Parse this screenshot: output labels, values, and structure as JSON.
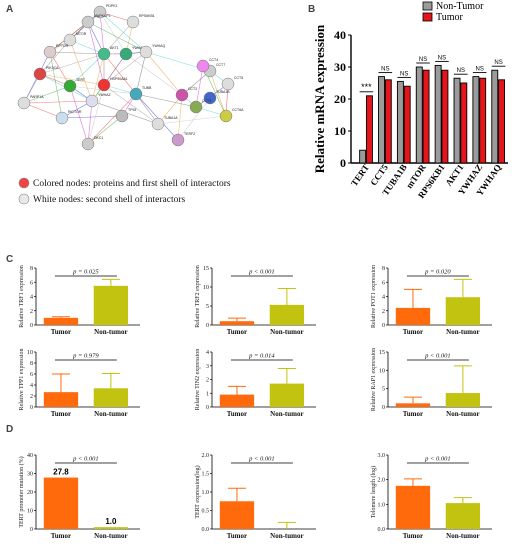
{
  "panels": {
    "a": "A",
    "b": "B",
    "c": "C",
    "d": "D"
  },
  "network": {
    "legend_colored": "Colored nodes: proteins and first shell of interactors",
    "legend_white": "White nodes: second shell of interactors",
    "node_labels": [
      "PDPK1",
      "RPS6KB1",
      "MAPKAP1",
      "MTOR",
      "RPTOR",
      "AKT1",
      "YWHAB",
      "YWHAQ",
      "TERT",
      "PIK3CA",
      "YWHAZ",
      "TUBA1B",
      "CCT7",
      "CCT5",
      "CCT4",
      "CCT6A",
      "TUBA1A",
      "PARP1A",
      "RICTOR",
      "TP53",
      "HSP90AA1",
      "CCT2",
      "CCT3",
      "DKC1",
      "TERF2",
      "TUBB"
    ]
  },
  "chart_data": [
    {
      "id": "B",
      "type": "bar",
      "ylabel": "Relative mRNA expression",
      "ylim": [
        0,
        40
      ],
      "yticks": [
        0,
        10,
        20,
        30,
        40
      ],
      "categories": [
        "TERT",
        "CCT5",
        "TUBA1B",
        "mTOR",
        "RPS6KB1",
        "AKT1",
        "YWHAZ",
        "YWHAQ"
      ],
      "series": [
        {
          "name": "Non-Tumor",
          "color": "#9b9b9b",
          "values": [
            4.0,
            27.0,
            25.5,
            30.0,
            30.5,
            26.5,
            27.0,
            29.0
          ]
        },
        {
          "name": "Tumor",
          "color": "#e4161c",
          "values": [
            21.0,
            26.0,
            24.0,
            29.0,
            29.0,
            25.0,
            26.5,
            26.0
          ]
        }
      ],
      "significance": [
        "***",
        "NS",
        "NS",
        "NS",
        "NS",
        "NS",
        "NS",
        "NS"
      ],
      "legend": "top-right"
    },
    {
      "id": "C1",
      "type": "bar",
      "ylabel": "Relative TRF1 expression",
      "categories": [
        "Tumor",
        "Non-tumor"
      ],
      "values": [
        1.0,
        5.5
      ],
      "errors": [
        0.15,
        0.9
      ],
      "colors": [
        "#ff6a0d",
        "#c2c210"
      ],
      "ylim": [
        0,
        8
      ],
      "yticks": [
        0,
        2,
        4,
        6,
        8
      ],
      "p": "p = 0.025"
    },
    {
      "id": "C2",
      "type": "bar",
      "ylabel": "Relative TRF2 expression",
      "categories": [
        "Tumor",
        "Non-tumor"
      ],
      "values": [
        1.0,
        5.3
      ],
      "errors": [
        0.8,
        4.3
      ],
      "colors": [
        "#ff6a0d",
        "#c2c210"
      ],
      "ylim": [
        0,
        15
      ],
      "yticks": [
        0,
        5,
        10,
        15
      ],
      "p": "p < 0.001"
    },
    {
      "id": "C3",
      "type": "bar",
      "ylabel": "Relative POT1 expression",
      "categories": [
        "Tumor",
        "Non-tumor"
      ],
      "values": [
        2.4,
        3.9
      ],
      "errors": [
        2.6,
        2.5
      ],
      "colors": [
        "#ff6a0d",
        "#c2c210"
      ],
      "ylim": [
        0,
        8
      ],
      "yticks": [
        0,
        2,
        4,
        6,
        8
      ],
      "p": "p = 0.020"
    },
    {
      "id": "C4",
      "type": "bar",
      "ylabel": "Relative TPP1 expression",
      "categories": [
        "Tumor",
        "Non-tumor"
      ],
      "values": [
        2.7,
        3.4
      ],
      "errors": [
        3.3,
        2.7
      ],
      "colors": [
        "#ff6a0d",
        "#c2c210"
      ],
      "ylim": [
        0,
        10
      ],
      "yticks": [
        0,
        2,
        4,
        6,
        8,
        10
      ],
      "p": "p = 0.979"
    },
    {
      "id": "C5",
      "type": "bar",
      "ylabel": "Relative TIN2 expression",
      "categories": [
        "Tumor",
        "Non-tumor"
      ],
      "values": [
        0.9,
        1.7
      ],
      "errors": [
        0.6,
        1.1
      ],
      "colors": [
        "#ff6a0d",
        "#c2c210"
      ],
      "ylim": [
        0,
        4
      ],
      "yticks": [
        0,
        1,
        2,
        3,
        4
      ],
      "p": "p = 0.014"
    },
    {
      "id": "C6",
      "type": "bar",
      "ylabel": "Relative RAP1 expression",
      "categories": [
        "Tumor",
        "Non-tumor"
      ],
      "values": [
        1.0,
        3.8
      ],
      "errors": [
        1.7,
        7.4
      ],
      "colors": [
        "#ff6a0d",
        "#c2c210"
      ],
      "ylim": [
        0,
        15
      ],
      "yticks": [
        0,
        5,
        10,
        15
      ],
      "p": "p < 0.001"
    },
    {
      "id": "D1",
      "type": "bar",
      "ylabel": "TERT promoter mutation (%)",
      "categories": [
        "Tumor",
        "Non-tumor"
      ],
      "values": [
        27.8,
        1.0
      ],
      "errors": [
        0,
        0
      ],
      "data_labels": [
        "27.8",
        "1.0"
      ],
      "colors": [
        "#ff6a0d",
        "#c2c210"
      ],
      "ylim": [
        0,
        40
      ],
      "yticks": [
        0,
        10,
        20,
        30,
        40
      ],
      "p": "p < 0.001"
    },
    {
      "id": "D2",
      "type": "bar",
      "ylabel": "TERT expression(log)",
      "categories": [
        "Tumor",
        "Non-tumor"
      ],
      "values": [
        0.75,
        0.0
      ],
      "errors": [
        0.35,
        0.18
      ],
      "colors": [
        "#ff6a0d",
        "#c2c210"
      ],
      "ylim": [
        0.0,
        2.0
      ],
      "yticks": [
        0.0,
        0.5,
        1.0,
        1.5,
        2.0
      ],
      "p": "p < 0.001"
    },
    {
      "id": "D3",
      "type": "bar",
      "ylabel": "Telomere length (log)",
      "categories": [
        "Tumor",
        "Non-tumor"
      ],
      "values": [
        1.75,
        1.05
      ],
      "errors": [
        0.28,
        0.22
      ],
      "colors": [
        "#ff6a0d",
        "#c2c210"
      ],
      "ylim": [
        0.0,
        3.0
      ],
      "yticks": [
        0.0,
        1.0,
        2.0,
        3.0
      ],
      "p": "p < 0.001"
    }
  ]
}
